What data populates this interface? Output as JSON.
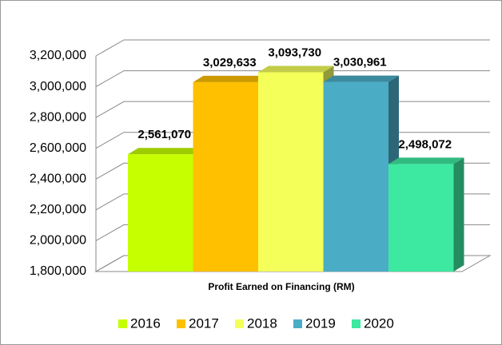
{
  "chart_data": {
    "type": "bar3d",
    "categories": [
      "Profit Earned on Financing (RM)"
    ],
    "series": [
      {
        "name": "2016",
        "color": "#c6ff00",
        "values": [
          2561070
        ],
        "value_labels": [
          "2,561,070"
        ]
      },
      {
        "name": "2017",
        "color": "#ffc000",
        "values": [
          3029633
        ],
        "value_labels": [
          "3,029,633"
        ]
      },
      {
        "name": "2018",
        "color": "#f4ff5a",
        "values": [
          3093730
        ],
        "value_labels": [
          "3,093,730"
        ]
      },
      {
        "name": "2019",
        "color": "#4bacc6",
        "values": [
          3030961
        ],
        "value_labels": [
          "3,030,961"
        ]
      },
      {
        "name": "2020",
        "color": "#3de8a0",
        "values": [
          2498072
        ],
        "value_labels": [
          "2,498,072"
        ]
      }
    ],
    "ylim": [
      1800000,
      3200000
    ],
    "yticks": [
      {
        "value": 1800000,
        "label": "1,800,000"
      },
      {
        "value": 2000000,
        "label": "2,000,000"
      },
      {
        "value": 2200000,
        "label": "2,200,000"
      },
      {
        "value": 2400000,
        "label": "2,400,000"
      },
      {
        "value": 2600000,
        "label": "2,600,000"
      },
      {
        "value": 2800000,
        "label": "2,800,000"
      },
      {
        "value": 3000000,
        "label": "3,000,000"
      },
      {
        "value": 3200000,
        "label": "3,200,000"
      }
    ],
    "grid": true,
    "legend": "bottom"
  }
}
